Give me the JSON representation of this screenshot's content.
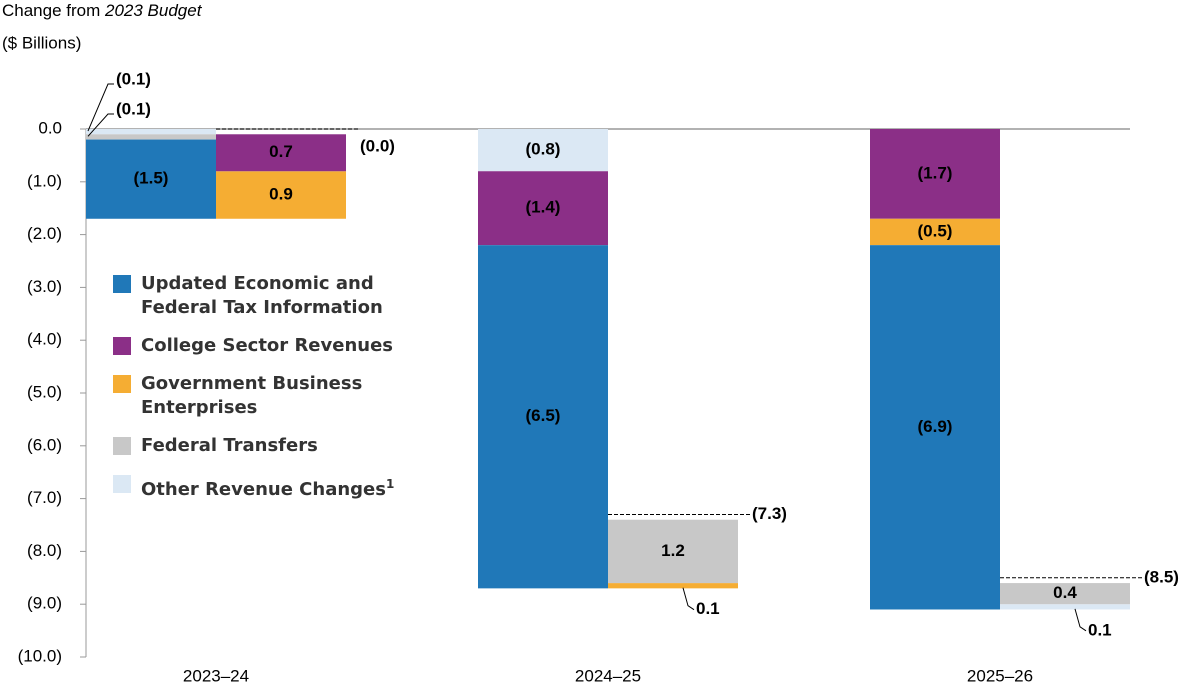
{
  "chart_data": {
    "type": "bar",
    "y_title": [
      "Change from ",
      "2023 Budget"
    ],
    "y_unit": "($ Billions)",
    "categories": [
      "2023–24",
      "2024–25",
      "2025–26"
    ],
    "series": [
      {
        "name": "Updated Economic and Federal Tax Information",
        "color": "#2078b8",
        "values": [
          -1.5,
          -6.5,
          -6.9
        ],
        "value_labels": [
          "(1.5)",
          "(6.5)",
          "(6.9)"
        ]
      },
      {
        "name": "College Sector Revenues",
        "color": "#8b2f87",
        "values": [
          0.7,
          -1.4,
          -1.7
        ],
        "value_labels": [
          "0.7",
          "(1.4)",
          "(1.7)"
        ]
      },
      {
        "name": "Government Business Enterprises",
        "color": "#f5ad33",
        "values": [
          0.9,
          0.1,
          -0.5
        ],
        "value_labels": [
          "0.9",
          "0.1",
          "(0.5)"
        ]
      },
      {
        "name": "Federal Transfers",
        "color": "#c8c8c8",
        "values": [
          -0.1,
          1.2,
          0.4
        ],
        "value_labels": [
          "(0.1)",
          "1.2",
          "0.4"
        ]
      },
      {
        "name": "Other Revenue Changes",
        "name_note": "1",
        "color": "#dbe8f4",
        "values": [
          -0.1,
          -0.8,
          0.1
        ],
        "value_labels": [
          "(0.1)",
          "(0.8)",
          "0.1"
        ]
      }
    ],
    "totals": [
      0,
      -7.3,
      -8.5
    ],
    "total_labels": [
      "(0.0)",
      "(7.3)",
      "(8.5)"
    ],
    "ylim": [
      -10,
      0
    ],
    "yticks": [
      {
        "value": 0,
        "label": "0.0"
      },
      {
        "value": -1,
        "label": "(1.0)"
      },
      {
        "value": -2,
        "label": "(2.0)"
      },
      {
        "value": -3,
        "label": "(3.0)"
      },
      {
        "value": -4,
        "label": "(4.0)"
      },
      {
        "value": -5,
        "label": "(5.0)"
      },
      {
        "value": -6,
        "label": "(6.0)"
      },
      {
        "value": -7,
        "label": "(7.0)"
      },
      {
        "value": -8,
        "label": "(8.0)"
      },
      {
        "value": -9,
        "label": "(9.0)"
      },
      {
        "value": -10,
        "label": "(10.0)"
      }
    ]
  }
}
